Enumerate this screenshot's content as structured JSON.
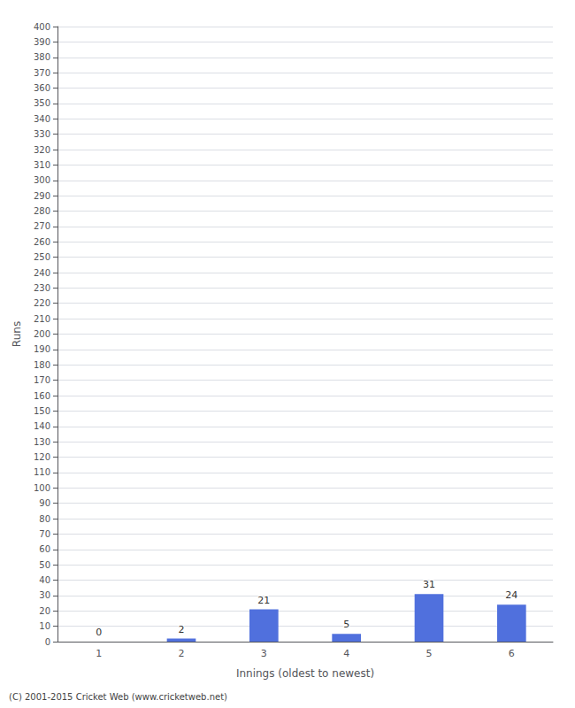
{
  "chart_data": {
    "type": "bar",
    "categories": [
      "1",
      "2",
      "3",
      "4",
      "5",
      "6"
    ],
    "values": [
      0,
      2,
      21,
      5,
      31,
      24
    ],
    "xlabel": "Innings (oldest to newest)",
    "ylabel": "Runs",
    "footer": "(C) 2001-2015 Cricket Web (www.cricketweb.net)",
    "ylim": [
      0,
      400
    ],
    "yticks": [
      0,
      10,
      20,
      30,
      40,
      50,
      60,
      70,
      80,
      90,
      100,
      110,
      120,
      130,
      140,
      150,
      160,
      170,
      180,
      190,
      200,
      210,
      220,
      230,
      240,
      250,
      260,
      270,
      280,
      290,
      300,
      310,
      320,
      330,
      340,
      350,
      360,
      370,
      380,
      390,
      400
    ],
    "grid": true,
    "data_labels": true
  }
}
